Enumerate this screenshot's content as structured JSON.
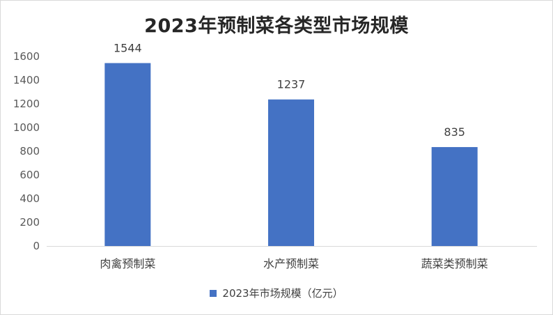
{
  "chart_data": {
    "type": "bar",
    "title": "2023年预制菜各类型市场规模",
    "categories": [
      "肉禽预制菜",
      "水产预制菜",
      "蔬菜类预制菜"
    ],
    "series": [
      {
        "name": "2023年市场规模（亿元）",
        "values": [
          1544,
          1237,
          835
        ],
        "color": "#4472C4"
      }
    ],
    "data_labels": [
      "1544",
      "1237",
      "835"
    ],
    "yticks": [
      0,
      200,
      400,
      600,
      800,
      1000,
      1200,
      1400,
      1600
    ],
    "ylim": [
      0,
      1600
    ],
    "grid": false,
    "legend_position": "bottom",
    "xlabel": "",
    "ylabel": ""
  }
}
